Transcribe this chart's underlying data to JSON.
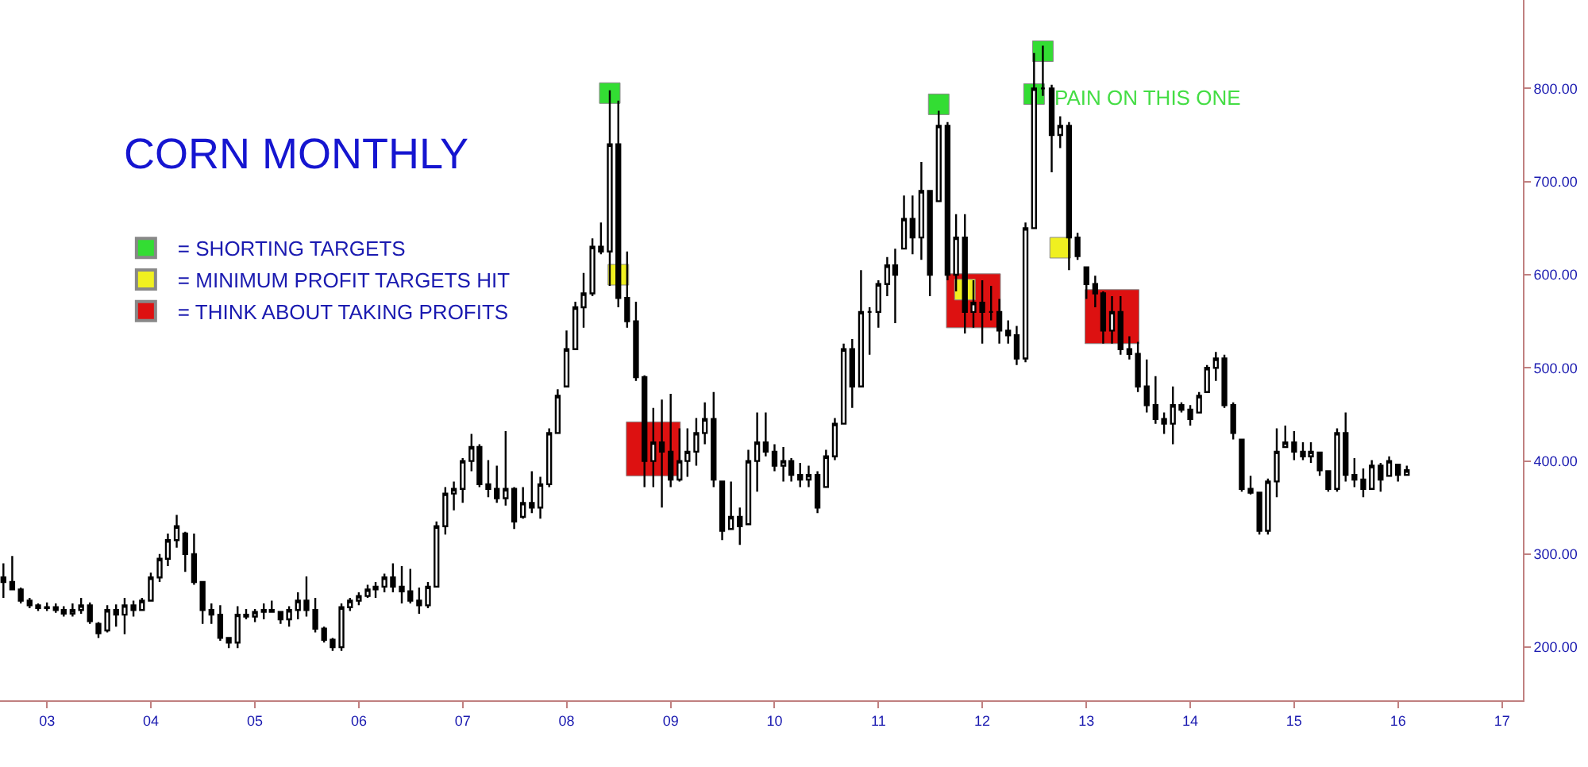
{
  "chart_data": {
    "type": "candlestick",
    "title": "CORN MONTHLY",
    "x": [
      "2002-08",
      "2002-09",
      "2002-10",
      "2002-11",
      "2002-12",
      "2003-01",
      "2003-02",
      "2003-03",
      "2003-04",
      "2003-05",
      "2003-06",
      "2003-07",
      "2003-08",
      "2003-09",
      "2003-10",
      "2003-11",
      "2003-12",
      "2004-01",
      "2004-02",
      "2004-03",
      "2004-04",
      "2004-05",
      "2004-06",
      "2004-07",
      "2004-08",
      "2004-09",
      "2004-10",
      "2004-11",
      "2004-12",
      "2005-01",
      "2005-02",
      "2005-03",
      "2005-04",
      "2005-05",
      "2005-06",
      "2005-07",
      "2005-08",
      "2005-09",
      "2005-10",
      "2005-11",
      "2005-12",
      "2006-01",
      "2006-02",
      "2006-03",
      "2006-04",
      "2006-05",
      "2006-06",
      "2006-07",
      "2006-08",
      "2006-09",
      "2006-10",
      "2006-11",
      "2006-12",
      "2007-01",
      "2007-02",
      "2007-03",
      "2007-04",
      "2007-05",
      "2007-06",
      "2007-07",
      "2007-08",
      "2007-09",
      "2007-10",
      "2007-11",
      "2007-12",
      "2008-01",
      "2008-02",
      "2008-03",
      "2008-04",
      "2008-05",
      "2008-06",
      "2008-07",
      "2008-08",
      "2008-09",
      "2008-10",
      "2008-11",
      "2008-12",
      "2009-01",
      "2009-02",
      "2009-03",
      "2009-04",
      "2009-05",
      "2009-06",
      "2009-07",
      "2009-08",
      "2009-09",
      "2009-10",
      "2009-11",
      "2009-12",
      "2010-01",
      "2010-02",
      "2010-03",
      "2010-04",
      "2010-05",
      "2010-06",
      "2010-07",
      "2010-08",
      "2010-09",
      "2010-10",
      "2010-11",
      "2010-12",
      "2011-01",
      "2011-02",
      "2011-03",
      "2011-04",
      "2011-05",
      "2011-06",
      "2011-07",
      "2011-08",
      "2011-09",
      "2011-10",
      "2011-11",
      "2011-12",
      "2012-01",
      "2012-02",
      "2012-03",
      "2012-04",
      "2012-05",
      "2012-06",
      "2012-07",
      "2012-08",
      "2012-09",
      "2012-10",
      "2012-11",
      "2012-12",
      "2013-01",
      "2013-02",
      "2013-03",
      "2013-04",
      "2013-05",
      "2013-06",
      "2013-07",
      "2013-08",
      "2013-09",
      "2013-10",
      "2013-11",
      "2013-12",
      "2014-01",
      "2014-02",
      "2014-03",
      "2014-04",
      "2014-05",
      "2014-06",
      "2014-07",
      "2014-08",
      "2014-09",
      "2014-10",
      "2014-11",
      "2014-12",
      "2015-01",
      "2015-02",
      "2015-03",
      "2015-04",
      "2015-05",
      "2015-06",
      "2015-07",
      "2015-08",
      "2015-09",
      "2015-10",
      "2015-11",
      "2015-12",
      "2016-01",
      "2016-02"
    ],
    "ohlc": [
      [
        275,
        290,
        253,
        270
      ],
      [
        270,
        298,
        262,
        262
      ],
      [
        262,
        264,
        247,
        250
      ],
      [
        250,
        253,
        242,
        245
      ],
      [
        245,
        247,
        239,
        242
      ],
      [
        242,
        248,
        239,
        243
      ],
      [
        243,
        247,
        237,
        240
      ],
      [
        240,
        244,
        233,
        236
      ],
      [
        236,
        247,
        233,
        240
      ],
      [
        240,
        253,
        236,
        245
      ],
      [
        245,
        248,
        225,
        228
      ],
      [
        225,
        227,
        210,
        215
      ],
      [
        218,
        245,
        216,
        240
      ],
      [
        240,
        246,
        222,
        235
      ],
      [
        235,
        253,
        214,
        245
      ],
      [
        245,
        250,
        233,
        240
      ],
      [
        240,
        253,
        239,
        250
      ],
      [
        250,
        280,
        250,
        275
      ],
      [
        275,
        300,
        270,
        295
      ],
      [
        295,
        322,
        287,
        315
      ],
      [
        315,
        342,
        307,
        330
      ],
      [
        322,
        324,
        281,
        300
      ],
      [
        300,
        322,
        267,
        270
      ],
      [
        270,
        270,
        225,
        240
      ],
      [
        240,
        247,
        225,
        235
      ],
      [
        235,
        245,
        207,
        210
      ],
      [
        210,
        210,
        199,
        205
      ],
      [
        205,
        244,
        199,
        235
      ],
      [
        235,
        241,
        230,
        233
      ],
      [
        233,
        241,
        227,
        238
      ],
      [
        238,
        247,
        230,
        240
      ],
      [
        240,
        250,
        237,
        238
      ],
      [
        238,
        239,
        225,
        230
      ],
      [
        230,
        244,
        222,
        240
      ],
      [
        240,
        259,
        230,
        250
      ],
      [
        250,
        276,
        233,
        240
      ],
      [
        240,
        253,
        216,
        220
      ],
      [
        220,
        222,
        205,
        208
      ],
      [
        208,
        210,
        196,
        200
      ],
      [
        200,
        247,
        196,
        243
      ],
      [
        243,
        253,
        239,
        250
      ],
      [
        250,
        259,
        245,
        255
      ],
      [
        255,
        267,
        253,
        262
      ],
      [
        262,
        270,
        253,
        265
      ],
      [
        265,
        279,
        259,
        275
      ],
      [
        275,
        290,
        259,
        265
      ],
      [
        265,
        287,
        247,
        260
      ],
      [
        260,
        284,
        247,
        250
      ],
      [
        250,
        264,
        236,
        245
      ],
      [
        245,
        270,
        242,
        265
      ],
      [
        265,
        335,
        264,
        330
      ],
      [
        330,
        372,
        321,
        365
      ],
      [
        365,
        378,
        347,
        370
      ],
      [
        370,
        403,
        355,
        400
      ],
      [
        400,
        429,
        389,
        415
      ],
      [
        415,
        418,
        372,
        375
      ],
      [
        375,
        401,
        361,
        370
      ],
      [
        370,
        395,
        355,
        360
      ],
      [
        360,
        432,
        352,
        370
      ],
      [
        370,
        372,
        327,
        335
      ],
      [
        340,
        372,
        338,
        355
      ],
      [
        355,
        389,
        344,
        350
      ],
      [
        350,
        383,
        338,
        375
      ],
      [
        375,
        435,
        372,
        430
      ],
      [
        430,
        477,
        429,
        470
      ],
      [
        480,
        540,
        480,
        520
      ],
      [
        520,
        571,
        520,
        565
      ],
      [
        565,
        602,
        543,
        580
      ],
      [
        580,
        639,
        577,
        630
      ],
      [
        630,
        656,
        622,
        625
      ],
      [
        625,
        798,
        588,
        740
      ],
      [
        740,
        787,
        565,
        575
      ],
      [
        575,
        625,
        543,
        550
      ],
      [
        550,
        571,
        486,
        490
      ],
      [
        490,
        492,
        372,
        400
      ],
      [
        400,
        457,
        372,
        420
      ],
      [
        420,
        466,
        350,
        410
      ],
      [
        410,
        472,
        372,
        380
      ],
      [
        380,
        435,
        378,
        400
      ],
      [
        400,
        435,
        383,
        410
      ],
      [
        410,
        446,
        395,
        430
      ],
      [
        430,
        463,
        418,
        445
      ],
      [
        445,
        474,
        372,
        380
      ],
      [
        378,
        378,
        315,
        325
      ],
      [
        327,
        378,
        327,
        340
      ],
      [
        340,
        350,
        310,
        330
      ],
      [
        332,
        412,
        332,
        400
      ],
      [
        400,
        452,
        367,
        420
      ],
      [
        420,
        452,
        405,
        410
      ],
      [
        410,
        418,
        389,
        395
      ],
      [
        395,
        415,
        378,
        400
      ],
      [
        400,
        403,
        378,
        385
      ],
      [
        385,
        398,
        372,
        380
      ],
      [
        380,
        395,
        372,
        385
      ],
      [
        385,
        389,
        344,
        350
      ],
      [
        372,
        412,
        372,
        405
      ],
      [
        405,
        446,
        401,
        440
      ],
      [
        440,
        526,
        440,
        520
      ],
      [
        520,
        531,
        457,
        480
      ],
      [
        480,
        605,
        480,
        560
      ],
      [
        560,
        565,
        514,
        560
      ],
      [
        560,
        594,
        543,
        590
      ],
      [
        590,
        619,
        577,
        610
      ],
      [
        610,
        628,
        548,
        600
      ],
      [
        628,
        685,
        628,
        660
      ],
      [
        660,
        685,
        622,
        640
      ],
      [
        640,
        721,
        616,
        690
      ],
      [
        690,
        690,
        577,
        600
      ],
      [
        679,
        776,
        679,
        760
      ],
      [
        760,
        764,
        594,
        600
      ],
      [
        600,
        665,
        582,
        640
      ],
      [
        640,
        665,
        537,
        560
      ],
      [
        560,
        594,
        543,
        570
      ],
      [
        570,
        594,
        526,
        560
      ],
      [
        560,
        588,
        551,
        560
      ],
      [
        560,
        574,
        526,
        540
      ],
      [
        540,
        551,
        526,
        535
      ],
      [
        535,
        545,
        503,
        510
      ],
      [
        510,
        656,
        506,
        650
      ],
      [
        650,
        838,
        650,
        800
      ],
      [
        800,
        846,
        792,
        800
      ],
      [
        800,
        804,
        710,
        750
      ],
      [
        750,
        770,
        736,
        760
      ],
      [
        760,
        764,
        605,
        640
      ],
      [
        640,
        645,
        616,
        620
      ],
      [
        608,
        608,
        574,
        590
      ],
      [
        590,
        599,
        565,
        580
      ],
      [
        580,
        582,
        526,
        540
      ],
      [
        540,
        577,
        526,
        560
      ],
      [
        560,
        577,
        514,
        520
      ],
      [
        520,
        534,
        509,
        515
      ],
      [
        515,
        528,
        474,
        480
      ],
      [
        480,
        509,
        452,
        460
      ],
      [
        460,
        491,
        440,
        445
      ],
      [
        445,
        452,
        429,
        440
      ],
      [
        440,
        480,
        418,
        460
      ],
      [
        460,
        463,
        452,
        455
      ],
      [
        455,
        460,
        438,
        445
      ],
      [
        452,
        474,
        452,
        470
      ],
      [
        474,
        503,
        474,
        500
      ],
      [
        500,
        517,
        486,
        510
      ],
      [
        510,
        514,
        457,
        460
      ],
      [
        460,
        463,
        423,
        430
      ],
      [
        423,
        423,
        367,
        370
      ],
      [
        370,
        384,
        364,
        366
      ],
      [
        366,
        367,
        321,
        325
      ],
      [
        325,
        381,
        321,
        378
      ],
      [
        378,
        435,
        361,
        410
      ],
      [
        415,
        438,
        415,
        420
      ],
      [
        420,
        432,
        401,
        410
      ],
      [
        410,
        420,
        401,
        405
      ],
      [
        405,
        420,
        398,
        410
      ],
      [
        409,
        409,
        384,
        390
      ],
      [
        389,
        389,
        367,
        370
      ],
      [
        370,
        435,
        367,
        430
      ],
      [
        430,
        452,
        378,
        385
      ],
      [
        385,
        403,
        372,
        380
      ],
      [
        380,
        392,
        361,
        370
      ],
      [
        370,
        401,
        369,
        395
      ],
      [
        395,
        398,
        367,
        380
      ],
      [
        384,
        405,
        384,
        400
      ],
      [
        396,
        396,
        378,
        385
      ],
      [
        385,
        395,
        385,
        390
      ]
    ],
    "color": "#000000",
    "series": [
      {
        "type": "scatter",
        "name": "= SHORTING TARGETS",
        "color": "#33dd33",
        "x": [
          "2008-06",
          "2011-08",
          "2012-08",
          "2012-07"
        ],
        "values": [
          795,
          783,
          840,
          794
        ]
      },
      {
        "type": "scatter",
        "name": "= MINIMUM PROFIT TARGETS HIT",
        "color": "#f0f020",
        "x": [
          "2008-07",
          "2011-11",
          "2012-10"
        ],
        "values": [
          600,
          584,
          629
        ]
      },
      {
        "type": "scatter",
        "name": "= THINK ABOUT TAKING PROFITS",
        "color": "#dd1111",
        "x": [
          "2008-11",
          "2011-12",
          "2013-04"
        ],
        "values": [
          413,
          572,
          555
        ]
      }
    ],
    "marker": "square",
    "annotations": [
      {
        "text": "PAIN ON THIS ONE",
        "x": "2012-09",
        "y": 790
      }
    ],
    "xlim": [
      "2002-07-20",
      "2017-03-15"
    ],
    "xticks": [
      {
        "value": "2003-01",
        "label": "03"
      },
      {
        "value": "2004-01",
        "label": "04"
      },
      {
        "value": "2005-01",
        "label": "05"
      },
      {
        "value": "2006-01",
        "label": "06"
      },
      {
        "value": "2007-01",
        "label": "07"
      },
      {
        "value": "2008-01",
        "label": "08"
      },
      {
        "value": "2009-01",
        "label": "09"
      },
      {
        "value": "2010-01",
        "label": "10"
      },
      {
        "value": "2011-01",
        "label": "11"
      },
      {
        "value": "2012-01",
        "label": "12"
      },
      {
        "value": "2013-01",
        "label": "13"
      },
      {
        "value": "2014-01",
        "label": "14"
      },
      {
        "value": "2015-01",
        "label": "15"
      },
      {
        "value": "2016-01",
        "label": "16"
      },
      {
        "value": "2017-01",
        "label": "17"
      }
    ],
    "ylim": [
      143,
      895
    ],
    "yticks": [
      {
        "value": 200,
        "label": "200.00"
      },
      {
        "value": 300,
        "label": "300.00"
      },
      {
        "value": 400,
        "label": "400.00"
      },
      {
        "value": 500,
        "label": "500.00"
      },
      {
        "value": 600,
        "label": "600.00"
      },
      {
        "value": 700,
        "label": "700.00"
      },
      {
        "value": 800,
        "label": "800.00"
      }
    ],
    "legend": "left"
  }
}
